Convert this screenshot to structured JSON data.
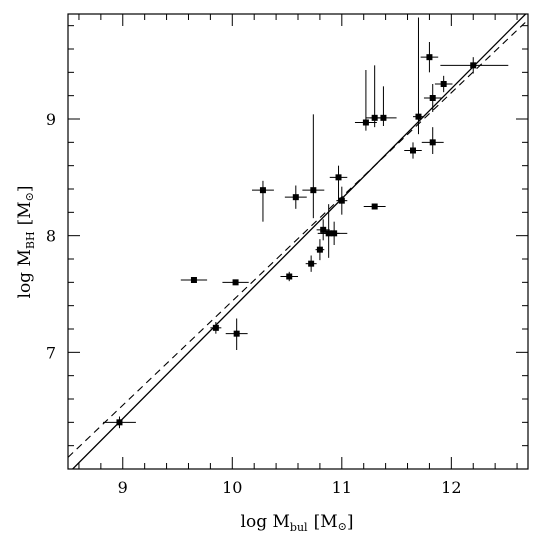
{
  "chart_data": {
    "type": "scatter",
    "title": "",
    "xlabel": {
      "main": "log M",
      "sub": "bul",
      "unit": "[M",
      "unit_close": "]"
    },
    "ylabel": {
      "main": "log M",
      "sub": "BH",
      "unit": "[M",
      "unit_close": "]"
    },
    "sun_symbol": "⊙",
    "xlim": [
      8.5,
      12.7
    ],
    "ylim": [
      6.0,
      9.9
    ],
    "xticks_major": [
      9,
      10,
      11,
      12
    ],
    "xtick_labels": [
      "9",
      "10",
      "11",
      "12"
    ],
    "xticks_minor_step": 0.2,
    "yticks_major": [
      7,
      8,
      9
    ],
    "ytick_labels": [
      "7",
      "8",
      "9"
    ],
    "yticks_minor_step": 0.2,
    "grid": false,
    "legend": "none",
    "points": [
      {
        "x": 8.97,
        "y": 6.4,
        "xerr": 0.15,
        "yerr_lo": 0.05,
        "yerr_hi": 0.05
      },
      {
        "x": 9.65,
        "y": 7.62,
        "xerr": 0.12,
        "yerr_lo": 0.02,
        "yerr_hi": 0.02
      },
      {
        "x": 9.85,
        "y": 7.21,
        "xerr": 0.05,
        "yerr_lo": 0.05,
        "yerr_hi": 0.05
      },
      {
        "x": 10.03,
        "y": 7.6,
        "xerr": 0.12,
        "yerr_lo": 0.02,
        "yerr_hi": 0.02
      },
      {
        "x": 10.04,
        "y": 7.16,
        "xerr": 0.1,
        "yerr_lo": 0.14,
        "yerr_hi": 0.13
      },
      {
        "x": 10.28,
        "y": 8.39,
        "xerr": 0.1,
        "yerr_lo": 0.27,
        "yerr_hi": 0.08
      },
      {
        "x": 10.52,
        "y": 7.65,
        "xerr": 0.08,
        "yerr_lo": 0.04,
        "yerr_hi": 0.04
      },
      {
        "x": 10.58,
        "y": 8.33,
        "xerr": 0.1,
        "yerr_lo": 0.1,
        "yerr_hi": 0.1
      },
      {
        "x": 10.72,
        "y": 7.76,
        "xerr": 0.05,
        "yerr_lo": 0.07,
        "yerr_hi": 0.07
      },
      {
        "x": 10.74,
        "y": 8.39,
        "xerr": 0.1,
        "yerr_lo": 0.24,
        "yerr_hi": 0.65
      },
      {
        "x": 10.8,
        "y": 7.88,
        "xerr": 0.04,
        "yerr_lo": 0.09,
        "yerr_hi": 0.09
      },
      {
        "x": 10.83,
        "y": 8.05,
        "xerr": 0.06,
        "yerr_lo": 0.09,
        "yerr_hi": 0.09
      },
      {
        "x": 10.88,
        "y": 8.02,
        "xerr": 0.1,
        "yerr_lo": 0.21,
        "yerr_hi": 0.25
      },
      {
        "x": 10.93,
        "y": 8.02,
        "xerr": 0.12,
        "yerr_lo": 0.1,
        "yerr_hi": 0.1
      },
      {
        "x": 10.97,
        "y": 8.5,
        "xerr": 0.08,
        "yerr_lo": 0.2,
        "yerr_hi": 0.1
      },
      {
        "x": 11.0,
        "y": 8.3,
        "xerr": 0.05,
        "yerr_lo": 0.12,
        "yerr_hi": 0.12
      },
      {
        "x": 11.22,
        "y": 8.97,
        "xerr": 0.1,
        "yerr_lo": 0.07,
        "yerr_hi": 0.45
      },
      {
        "x": 11.3,
        "y": 9.01,
        "xerr": 0.08,
        "yerr_lo": 0.08,
        "yerr_hi": 0.45
      },
      {
        "x": 11.3,
        "y": 8.25,
        "xerr": 0.1,
        "yerr_lo": 0.02,
        "yerr_hi": 0.02
      },
      {
        "x": 11.38,
        "y": 9.01,
        "xerr": 0.12,
        "yerr_lo": 0.07,
        "yerr_hi": 0.27
      },
      {
        "x": 11.65,
        "y": 8.73,
        "xerr": 0.08,
        "yerr_lo": 0.07,
        "yerr_hi": 0.07
      },
      {
        "x": 11.7,
        "y": 9.02,
        "xerr": 0.05,
        "yerr_lo": 0.15,
        "yerr_hi": 0.85
      },
      {
        "x": 11.8,
        "y": 9.53,
        "xerr": 0.08,
        "yerr_lo": 0.13,
        "yerr_hi": 0.13
      },
      {
        "x": 11.83,
        "y": 9.18,
        "xerr": 0.08,
        "yerr_lo": 0.12,
        "yerr_hi": 0.12
      },
      {
        "x": 11.83,
        "y": 8.8,
        "xerr": 0.1,
        "yerr_lo": 0.1,
        "yerr_hi": 0.13
      },
      {
        "x": 11.93,
        "y": 9.3,
        "xerr": 0.08,
        "yerr_lo": 0.07,
        "yerr_hi": 0.07
      },
      {
        "x": 12.2,
        "y": 9.46,
        "xerr_lo": 0.3,
        "xerr_hi": 0.32,
        "yerr_lo": 0.07,
        "yerr_hi": 0.07
      }
    ],
    "fit_lines": [
      {
        "style": "solid",
        "x": [
          8.5,
          12.7
        ],
        "y": [
          5.96,
          9.92
        ]
      },
      {
        "style": "dashed",
        "x": [
          8.5,
          12.7
        ],
        "y": [
          6.1,
          9.85
        ]
      }
    ]
  }
}
